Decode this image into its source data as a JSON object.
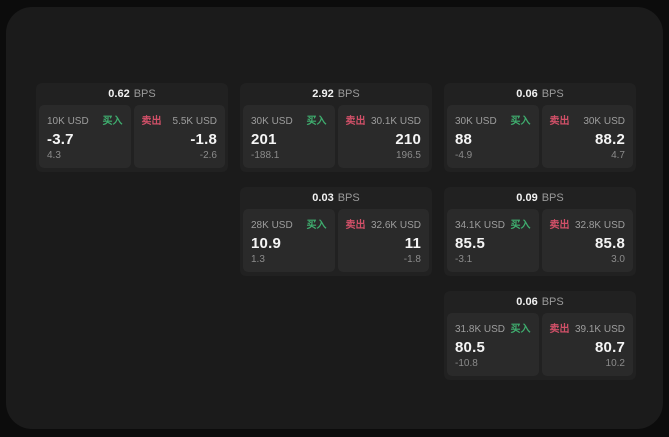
{
  "labels": {
    "bps": "BPS",
    "buy": "买入",
    "sell": "卖出"
  },
  "colors": {
    "buy": "#3fae6f",
    "sell": "#d15068",
    "panel_bg": "#1b1b1b",
    "card_bg": "#212121",
    "subpanel_bg": "#2a2a2a"
  },
  "cards": [
    {
      "bps": "0.62",
      "buy": {
        "amount": "10K USD",
        "value": "-3.7",
        "delta": "4.3"
      },
      "sell": {
        "amount": "5.5K USD",
        "value": "-1.8",
        "delta": "-2.6"
      }
    },
    {
      "bps": "2.92",
      "buy": {
        "amount": "30K USD",
        "value": "201",
        "delta": "-188.1"
      },
      "sell": {
        "amount": "30.1K USD",
        "value": "210",
        "delta": "196.5"
      }
    },
    {
      "bps": "0.06",
      "buy": {
        "amount": "30K USD",
        "value": "88",
        "delta": "-4.9"
      },
      "sell": {
        "amount": "30K USD",
        "value": "88.2",
        "delta": "4.7"
      }
    },
    {
      "bps": "0.03",
      "buy": {
        "amount": "28K USD",
        "value": "10.9",
        "delta": "1.3"
      },
      "sell": {
        "amount": "32.6K USD",
        "value": "11",
        "delta": "-1.8"
      }
    },
    {
      "bps": "0.09",
      "buy": {
        "amount": "34.1K USD",
        "value": "85.5",
        "delta": "-3.1"
      },
      "sell": {
        "amount": "32.8K USD",
        "value": "85.8",
        "delta": "3.0"
      }
    },
    {
      "bps": "0.06",
      "buy": {
        "amount": "31.8K USD",
        "value": "80.5",
        "delta": "-10.8"
      },
      "sell": {
        "amount": "39.1K USD",
        "value": "80.7",
        "delta": "10.2"
      }
    }
  ]
}
